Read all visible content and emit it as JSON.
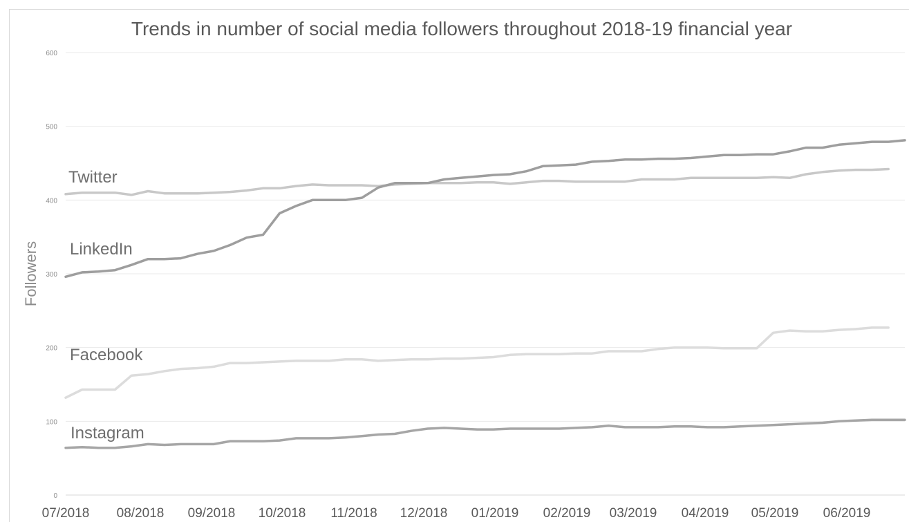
{
  "chart_data": {
    "type": "line",
    "title": "Trends in number of social media followers throughout 2018-19 financial year",
    "xlabel": "",
    "ylabel": "Followers",
    "ylim": [
      0,
      600
    ],
    "yticks": [
      0,
      100,
      200,
      300,
      400,
      500,
      600
    ],
    "grid": true,
    "legend": "none",
    "x_tick_labels": [
      "07/2018",
      "08/2018",
      "09/2018",
      "10/2018",
      "11/2018",
      "12/2018",
      "01/2019",
      "02/2019",
      "03/2019",
      "04/2019",
      "05/2019",
      "06/2019"
    ],
    "series": [
      {
        "name": "Twitter",
        "color": "#c8c8c8",
        "values": [
          408,
          410,
          410,
          410,
          407,
          412,
          409,
          409,
          409,
          410,
          411,
          413,
          416,
          416,
          419,
          421,
          420,
          420,
          420,
          419,
          421,
          422,
          423,
          423,
          423,
          424,
          424,
          422,
          424,
          426,
          426,
          425,
          425,
          425,
          425,
          428,
          428,
          428,
          430,
          430,
          430,
          430,
          430,
          431,
          430,
          435,
          438,
          440,
          441,
          441,
          442
        ]
      },
      {
        "name": "LinkedIn",
        "color": "#9e9e9e",
        "values": [
          296,
          302,
          303,
          305,
          312,
          320,
          320,
          321,
          327,
          331,
          339,
          349,
          353,
          382,
          392,
          400,
          400,
          400,
          403,
          417,
          423,
          423,
          423,
          428,
          430,
          432,
          434,
          435,
          439,
          446,
          447,
          448,
          452,
          453,
          455,
          455,
          456,
          456,
          457,
          459,
          461,
          461,
          462,
          462,
          466,
          471,
          471,
          475,
          477,
          479,
          479,
          481
        ]
      },
      {
        "name": "Facebook",
        "color": "#dcdcdc",
        "values": [
          132,
          143,
          143,
          143,
          162,
          164,
          168,
          171,
          172,
          174,
          179,
          179,
          180,
          181,
          182,
          182,
          182,
          184,
          184,
          182,
          183,
          184,
          184,
          185,
          185,
          186,
          187,
          190,
          191,
          191,
          191,
          192,
          192,
          195,
          195,
          195,
          198,
          200,
          200,
          200,
          199,
          199,
          199,
          220,
          223,
          222,
          222,
          224,
          225,
          227,
          227
        ]
      },
      {
        "name": "Instagram",
        "color": "#a6a6a6",
        "values": [
          64,
          65,
          64,
          64,
          66,
          69,
          68,
          69,
          69,
          69,
          73,
          73,
          73,
          74,
          77,
          77,
          77,
          78,
          80,
          82,
          83,
          87,
          90,
          91,
          90,
          89,
          89,
          90,
          90,
          90,
          90,
          91,
          92,
          94,
          92,
          92,
          92,
          93,
          93,
          92,
          92,
          93,
          94,
          95,
          96,
          97,
          98,
          100,
          101,
          102,
          102,
          102
        ]
      }
    ]
  }
}
